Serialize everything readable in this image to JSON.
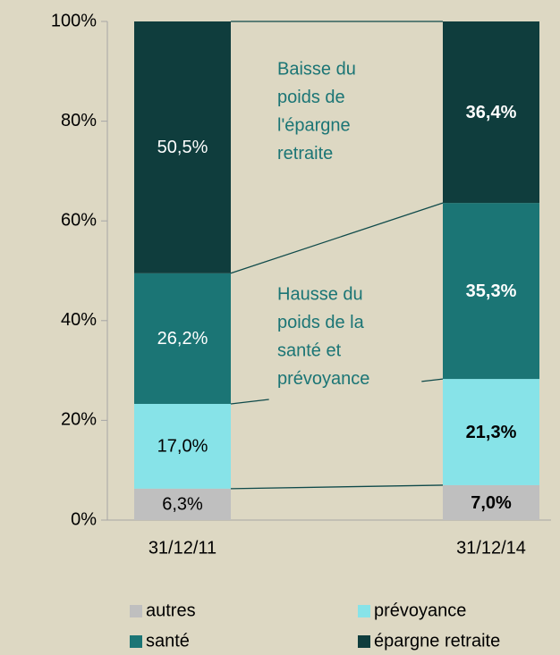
{
  "chart_data": {
    "type": "bar",
    "stacked": true,
    "categories": [
      "31/12/11",
      "31/12/14"
    ],
    "series": [
      {
        "name": "autres",
        "color": "#bfbfbf",
        "label_color": "#000000",
        "values": [
          6.3,
          7.0
        ],
        "value_labels": [
          "6,3%",
          "7,0%"
        ]
      },
      {
        "name": "prévoyance",
        "color": "#87e3e8",
        "label_color": "#000000",
        "values": [
          17.0,
          21.3
        ],
        "value_labels": [
          "17,0%",
          "21,3%"
        ]
      },
      {
        "name": "santé",
        "color": "#1b7575",
        "label_color": "#ffffff",
        "values": [
          26.2,
          35.3
        ],
        "value_labels": [
          "26,2%",
          "35,3%"
        ]
      },
      {
        "name": "épargne retraite",
        "color": "#0f3d3d",
        "label_color": "#ffffff",
        "values": [
          50.5,
          36.4
        ],
        "value_labels": [
          "50,5%",
          "36,4%"
        ]
      }
    ],
    "value_label_bold": [
      false,
      true
    ],
    "ylim": [
      0,
      100
    ],
    "yticks": [
      {
        "value": 0,
        "label": "0%"
      },
      {
        "value": 20,
        "label": "20%"
      },
      {
        "value": 40,
        "label": "40%"
      },
      {
        "value": 60,
        "label": "60%"
      },
      {
        "value": 80,
        "label": "80%"
      },
      {
        "value": 100,
        "label": "100%"
      }
    ],
    "annotations": [
      {
        "lines": [
          "Baisse du",
          "poids de",
          "l'épargne",
          "retraite"
        ],
        "color": "#1b7575"
      },
      {
        "lines": [
          "Hausse du",
          "poids de la",
          "santé et",
          "prévoyance"
        ],
        "color": "#1b7575"
      }
    ]
  }
}
